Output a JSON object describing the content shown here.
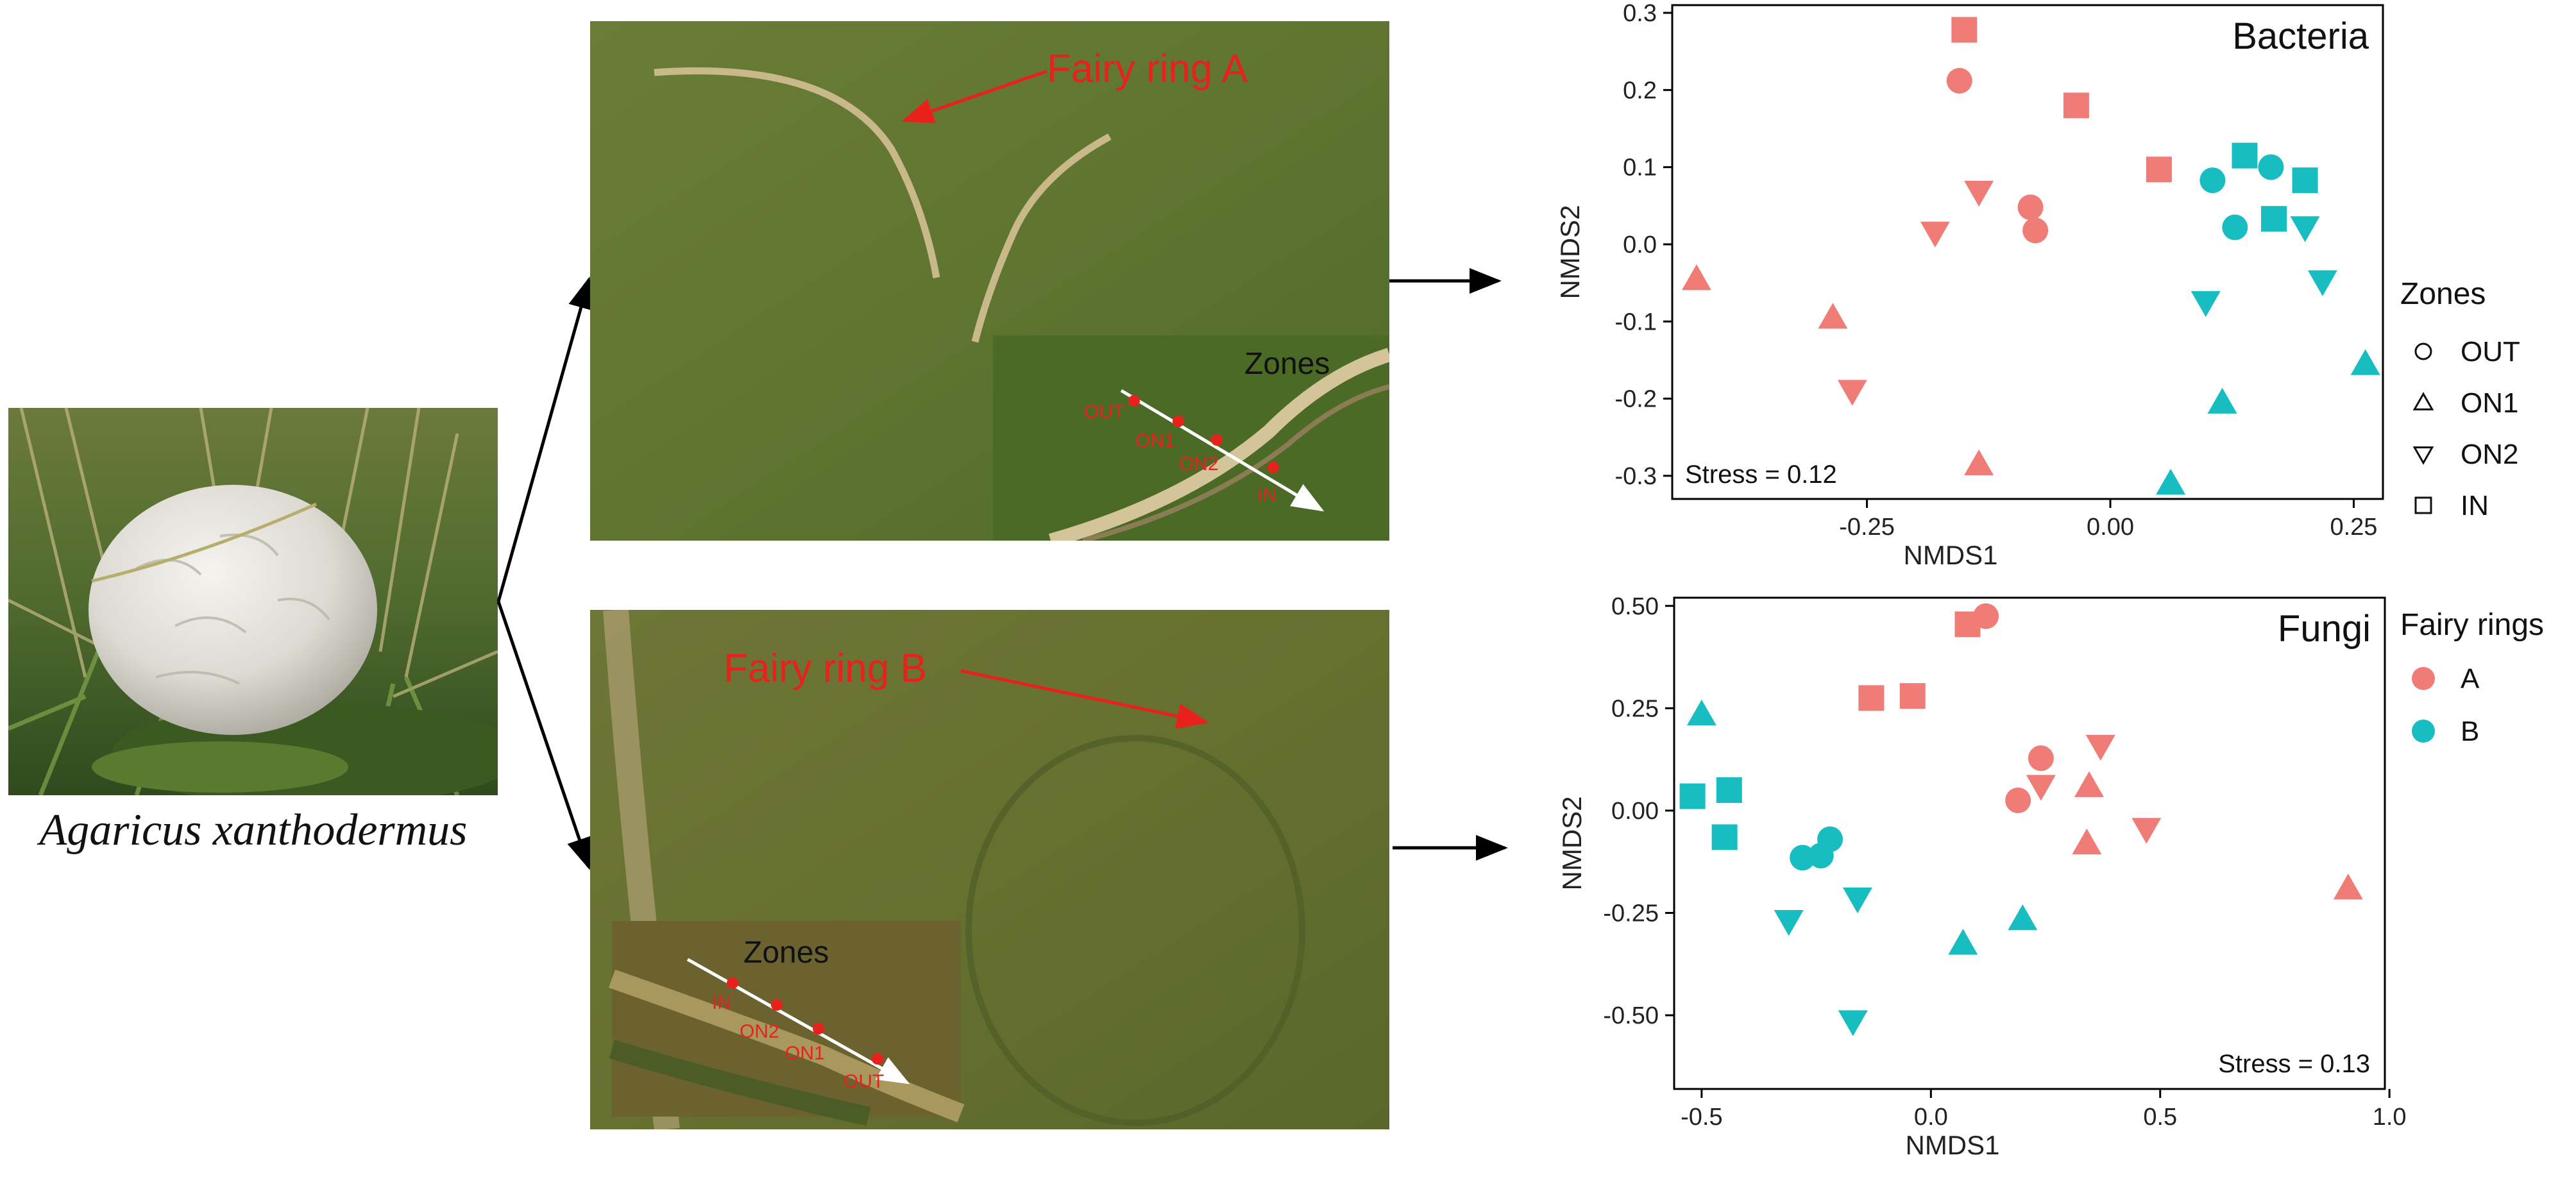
{
  "species_caption": "Agaricus xanthodermus",
  "photo_a": {
    "label": "Fairy ring A",
    "inset_title": "Zones",
    "inset_points": [
      "OUT",
      "ON1",
      "ON2",
      "IN"
    ]
  },
  "photo_b": {
    "label": "Fairy ring B",
    "inset_title": "Zones",
    "inset_points": [
      "IN",
      "ON2",
      "ON1",
      "OUT"
    ]
  },
  "legend_zones": {
    "title": "Zones",
    "items": [
      {
        "label": "OUT",
        "shape": "circle"
      },
      {
        "label": "ON1",
        "shape": "triangle-up"
      },
      {
        "label": "ON2",
        "shape": "triangle-down"
      },
      {
        "label": "IN",
        "shape": "square"
      }
    ]
  },
  "legend_rings": {
    "title": "Fairy rings",
    "items": [
      {
        "label": "A",
        "color": "#F07C78"
      },
      {
        "label": "B",
        "color": "#18BDC1"
      }
    ]
  },
  "colors": {
    "A": "#F07C78",
    "B": "#18BDC1",
    "annotation": "#E8211C"
  },
  "chart_data": [
    {
      "type": "scatter",
      "title": "Bacteria",
      "annotation": "Stress = 0.12",
      "xlabel": "NMDS1",
      "ylabel": "NMDS2",
      "xlim": [
        -0.45,
        0.28
      ],
      "ylim": [
        -0.33,
        0.31
      ],
      "xticks": [
        -0.25,
        0.0,
        0.25
      ],
      "xtick_labels": [
        "-0.25",
        "0.00",
        "0.25"
      ],
      "yticks": [
        -0.3,
        -0.2,
        -0.1,
        0.0,
        0.1,
        0.2,
        0.3
      ],
      "ytick_labels": [
        "-0.3",
        "-0.2",
        "-0.1",
        "0.0",
        "0.1",
        "0.2",
        "0.3"
      ],
      "points": [
        {
          "ring": "A",
          "zone": "OUT",
          "x": -0.155,
          "y": 0.212
        },
        {
          "ring": "A",
          "zone": "OUT",
          "x": -0.082,
          "y": 0.048
        },
        {
          "ring": "A",
          "zone": "OUT",
          "x": -0.077,
          "y": 0.018
        },
        {
          "ring": "A",
          "zone": "ON1",
          "x": -0.425,
          "y": -0.045
        },
        {
          "ring": "A",
          "zone": "ON1",
          "x": -0.285,
          "y": -0.095
        },
        {
          "ring": "A",
          "zone": "ON1",
          "x": -0.135,
          "y": -0.285
        },
        {
          "ring": "A",
          "zone": "ON2",
          "x": -0.18,
          "y": 0.015
        },
        {
          "ring": "A",
          "zone": "ON2",
          "x": -0.135,
          "y": 0.068
        },
        {
          "ring": "A",
          "zone": "ON2",
          "x": -0.265,
          "y": -0.19
        },
        {
          "ring": "A",
          "zone": "IN",
          "x": -0.15,
          "y": 0.278
        },
        {
          "ring": "A",
          "zone": "IN",
          "x": -0.035,
          "y": 0.18
        },
        {
          "ring": "A",
          "zone": "IN",
          "x": 0.05,
          "y": 0.097
        },
        {
          "ring": "B",
          "zone": "OUT",
          "x": 0.105,
          "y": 0.083
        },
        {
          "ring": "B",
          "zone": "OUT",
          "x": 0.165,
          "y": 0.1
        },
        {
          "ring": "B",
          "zone": "OUT",
          "x": 0.128,
          "y": 0.022
        },
        {
          "ring": "B",
          "zone": "ON1",
          "x": 0.115,
          "y": -0.205
        },
        {
          "ring": "B",
          "zone": "ON1",
          "x": 0.062,
          "y": -0.31
        },
        {
          "ring": "B",
          "zone": "ON1",
          "x": 0.262,
          "y": -0.155
        },
        {
          "ring": "B",
          "zone": "ON2",
          "x": 0.2,
          "y": 0.022
        },
        {
          "ring": "B",
          "zone": "ON2",
          "x": 0.098,
          "y": -0.075
        },
        {
          "ring": "B",
          "zone": "ON2",
          "x": 0.218,
          "y": -0.048
        },
        {
          "ring": "B",
          "zone": "IN",
          "x": 0.138,
          "y": 0.115
        },
        {
          "ring": "B",
          "zone": "IN",
          "x": 0.2,
          "y": 0.083
        },
        {
          "ring": "B",
          "zone": "IN",
          "x": 0.168,
          "y": 0.033
        }
      ]
    },
    {
      "type": "scatter",
      "title": "Fungi",
      "annotation": "Stress = 0.13",
      "xlabel": "NMDS1",
      "ylabel": "NMDS2",
      "xlim": [
        -0.56,
        0.99
      ],
      "ylim": [
        -0.68,
        0.52
      ],
      "xticks": [
        -0.5,
        0.0,
        0.5,
        1.0
      ],
      "xtick_labels": [
        "-0.5",
        "0.0",
        "0.5",
        "1.0"
      ],
      "yticks": [
        -0.5,
        -0.25,
        0.0,
        0.25,
        0.5
      ],
      "ytick_labels": [
        "-0.50",
        "-0.25",
        "0.00",
        "0.25",
        "0.50"
      ],
      "points": [
        {
          "ring": "A",
          "zone": "OUT",
          "x": 0.12,
          "y": 0.475
        },
        {
          "ring": "A",
          "zone": "OUT",
          "x": 0.24,
          "y": 0.128
        },
        {
          "ring": "A",
          "zone": "OUT",
          "x": 0.19,
          "y": 0.025
        },
        {
          "ring": "A",
          "zone": "ON1",
          "x": 0.91,
          "y": -0.19
        },
        {
          "ring": "A",
          "zone": "ON1",
          "x": 0.345,
          "y": 0.06
        },
        {
          "ring": "A",
          "zone": "ON1",
          "x": 0.34,
          "y": -0.08
        },
        {
          "ring": "A",
          "zone": "ON2",
          "x": 0.24,
          "y": 0.06
        },
        {
          "ring": "A",
          "zone": "ON2",
          "x": 0.37,
          "y": 0.158
        },
        {
          "ring": "A",
          "zone": "ON2",
          "x": 0.47,
          "y": -0.045
        },
        {
          "ring": "A",
          "zone": "IN",
          "x": 0.08,
          "y": 0.455
        },
        {
          "ring": "A",
          "zone": "IN",
          "x": -0.04,
          "y": 0.28
        },
        {
          "ring": "A",
          "zone": "IN",
          "x": -0.13,
          "y": 0.275
        },
        {
          "ring": "B",
          "zone": "OUT",
          "x": -0.28,
          "y": -0.115
        },
        {
          "ring": "B",
          "zone": "OUT",
          "x": -0.24,
          "y": -0.11
        },
        {
          "ring": "B",
          "zone": "OUT",
          "x": -0.22,
          "y": -0.07
        },
        {
          "ring": "B",
          "zone": "ON1",
          "x": -0.5,
          "y": 0.235
        },
        {
          "ring": "B",
          "zone": "ON1",
          "x": 0.07,
          "y": -0.325
        },
        {
          "ring": "B",
          "zone": "ON1",
          "x": 0.2,
          "y": -0.265
        },
        {
          "ring": "B",
          "zone": "ON2",
          "x": -0.31,
          "y": -0.27
        },
        {
          "ring": "B",
          "zone": "ON2",
          "x": -0.16,
          "y": -0.215
        },
        {
          "ring": "B",
          "zone": "ON2",
          "x": -0.17,
          "y": -0.515
        },
        {
          "ring": "B",
          "zone": "IN",
          "x": -0.52,
          "y": 0.035
        },
        {
          "ring": "B",
          "zone": "IN",
          "x": -0.44,
          "y": 0.05
        },
        {
          "ring": "B",
          "zone": "IN",
          "x": -0.45,
          "y": -0.065
        }
      ]
    }
  ]
}
